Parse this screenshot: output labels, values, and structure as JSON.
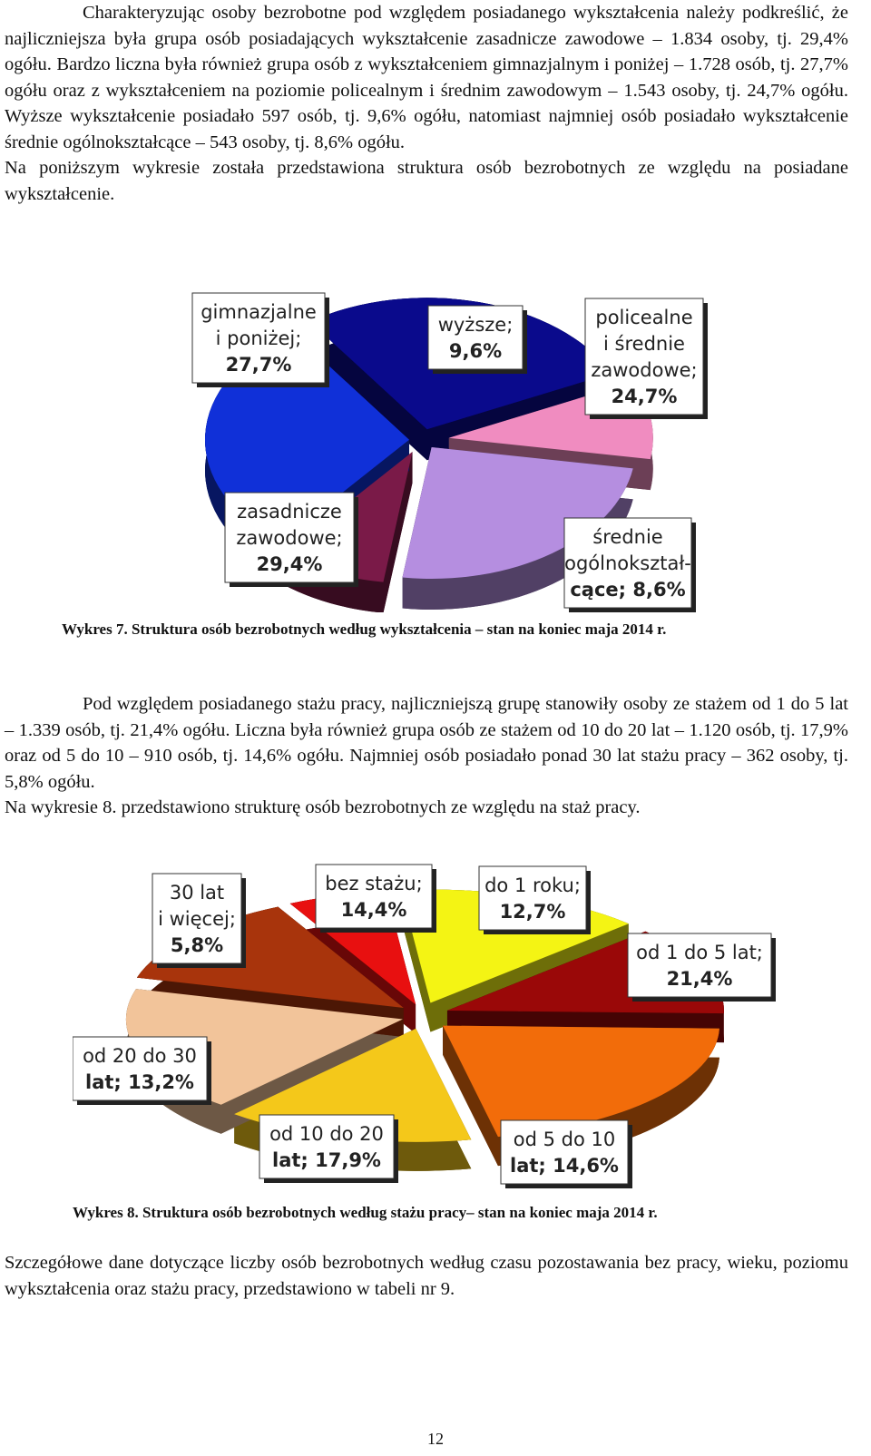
{
  "paragraphs": {
    "p1": "Charakteryzując osoby bezrobotne pod względem posiadanego wykształcenia należy podkreślić, że najliczniejsza była grupa osób posiadających wykształcenie zasadnicze zawodowe – 1.834 osoby, tj. 29,4% ogółu. Bardzo liczna była również grupa osób z wykształceniem gimnazjalnym i poniżej – 1.728 osób, tj. 27,7% ogółu oraz z wykształceniem na poziomie policealnym i średnim zawodowym – 1.543 osoby, tj. 24,7% ogółu. Wyższe wykształcenie posiadało 597 osób, tj. 9,6% ogółu, natomiast najmniej osób posiadało wykształcenie średnie ogólnokształcące – 543 osoby, tj. 8,6% ogółu.",
    "p2": "Na poniższym wykresie została przedstawiona struktura osób bezrobotnych ze względu na posiadane wykształcenie.",
    "p3": "Pod względem posiadanego stażu pracy, najliczniejszą grupę stanowiły osoby ze stażem od 1 do 5 lat – 1.339 osób, tj. 21,4% ogółu. Liczna była również grupa osób ze stażem od 10 do 20 lat – 1.120 osób, tj. 17,9% oraz od 5 do 10 – 910 osób, tj. 14,6% ogółu. Najmniej osób posiadało ponad 30 lat stażu pracy – 362 osoby, tj. 5,8% ogółu.",
    "p4": "Na wykresie 8. przedstawiono strukturę osób bezrobotnych ze względu na staż pracy.",
    "p5": "Szczegółowe dane dotyczące liczby osób bezrobotnych według czasu pozostawania bez pracy, wieku, poziomu wykształcenia oraz stażu pracy, przedstawiono w tabeli nr 9."
  },
  "captions": {
    "c7": "Wykres 7. Struktura osób bezrobotnych według wykształcenia – stan na koniec maja 2014 r.",
    "c8": "Wykres 8. Struktura osób bezrobotnych według stażu pracy– stan na koniec maja 2014 r."
  },
  "page_number": "12",
  "chart_data": [
    {
      "type": "pie",
      "title": "",
      "series": [
        {
          "label": [
            "gimnazjalne",
            "i poniżej;",
            "27,7%"
          ],
          "value": 27.7,
          "color": "#0a0a8c"
        },
        {
          "label": [
            "wyższe;",
            "9,6%"
          ],
          "value": 9.6,
          "color": "#f08cc0"
        },
        {
          "label": [
            "policealne",
            "i średnie",
            "zawodowe;",
            "24,7%"
          ],
          "value": 24.7,
          "color": "#b58ee0"
        },
        {
          "label": [
            "średnie",
            "ogólnokształ-",
            "cące; 8,6%"
          ],
          "value": 8.6,
          "color": "#7a1a48"
        },
        {
          "label": [
            "zasadnicze",
            "zawodowe;",
            "29,4%"
          ],
          "value": 29.4,
          "color": "#1030d8"
        }
      ]
    },
    {
      "type": "pie",
      "title": "",
      "series": [
        {
          "label": [
            "30 lat",
            "i więcej;",
            "5,8%"
          ],
          "value": 5.8,
          "color": "#e81010"
        },
        {
          "label": [
            "bez stażu;",
            "14,4%"
          ],
          "value": 14.4,
          "color": "#f4f414"
        },
        {
          "label": [
            "do 1 roku;",
            "12,7%"
          ],
          "value": 12.7,
          "color": "#9a0808"
        },
        {
          "label": [
            "od 1 do 5 lat;",
            "21,4%"
          ],
          "value": 21.4,
          "color": "#f26c0a"
        },
        {
          "label": [
            "od 5 do 10",
            "lat; 14,6%"
          ],
          "value": 14.6,
          "color": "#f4c81a"
        },
        {
          "label": [
            "od 10 do 20",
            "lat; 17,9%"
          ],
          "value": 17.9,
          "color": "#f2c49a"
        },
        {
          "label": [
            "od 20 do 30",
            "lat; 13,2%"
          ],
          "value": 13.2,
          "color": "#a8340c"
        }
      ]
    }
  ]
}
